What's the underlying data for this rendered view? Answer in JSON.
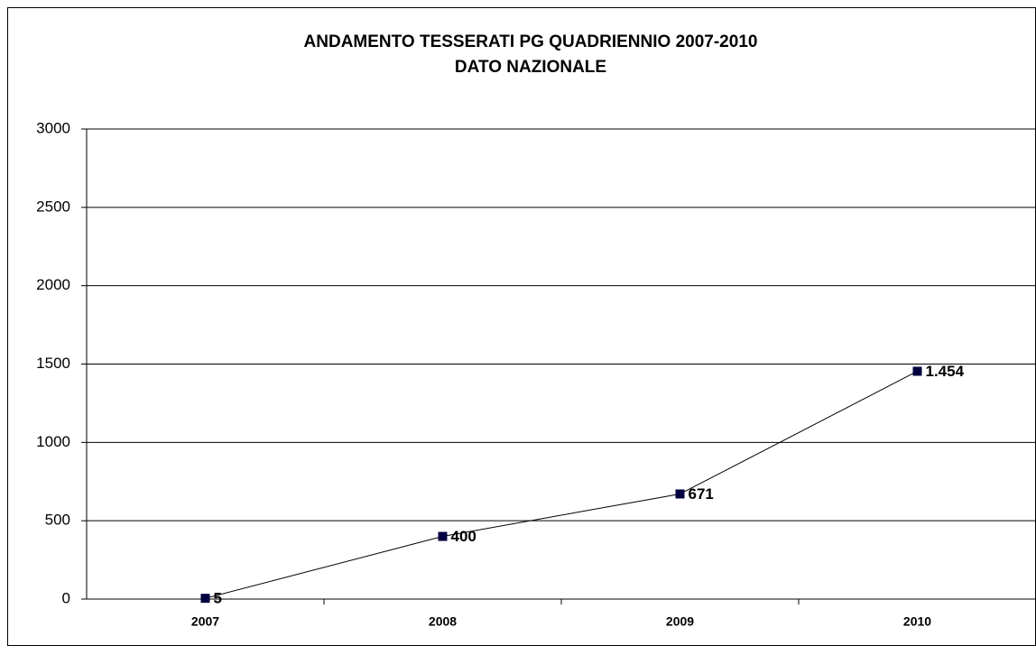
{
  "chart_data": {
    "type": "line",
    "title": "ANDAMENTO TESSERATI PG QUADRIENNIO 2007-2010",
    "subtitle": "DATO NAZIONALE",
    "categories": [
      "2007",
      "2008",
      "2009",
      "2010"
    ],
    "values": [
      5,
      400,
      671,
      1454
    ],
    "value_labels": [
      "5",
      "400",
      "671",
      "1.454"
    ],
    "color": "#000040",
    "ylim": [
      0,
      3000
    ],
    "yticks": [
      0,
      500,
      1000,
      1500,
      2000,
      2500,
      3000
    ],
    "grid": true
  }
}
